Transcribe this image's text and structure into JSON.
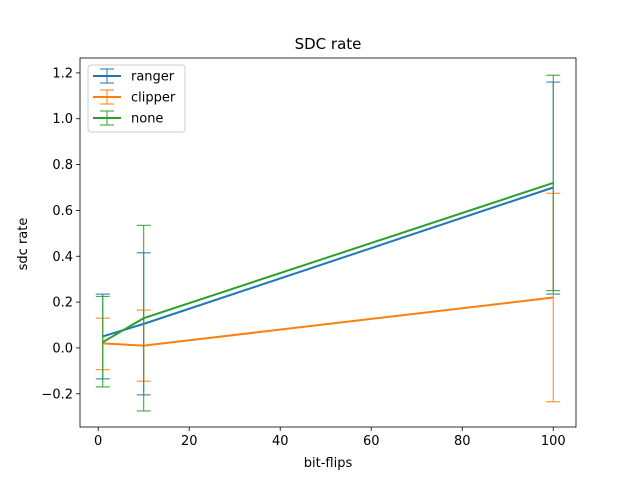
{
  "chart_data": {
    "type": "line",
    "title": "SDC rate",
    "xlabel": "bit-flips",
    "ylabel": "sdc rate",
    "xlim": [
      -4,
      105
    ],
    "ylim": [
      -0.345,
      1.265
    ],
    "x_ticks": [
      0,
      20,
      40,
      60,
      80,
      100
    ],
    "y_ticks": [
      -0.2,
      0.0,
      0.2,
      0.4,
      0.6,
      0.8,
      1.0,
      1.2
    ],
    "x_tick_labels": [
      "0",
      "20",
      "40",
      "60",
      "80",
      "100"
    ],
    "y_tick_labels": [
      "−0.2",
      "0.0",
      "0.2",
      "0.4",
      "0.6",
      "0.8",
      "1.0",
      "1.2"
    ],
    "legend_position": "top-left",
    "grid": false,
    "x": [
      1,
      10,
      100
    ],
    "series": [
      {
        "name": "ranger",
        "color": "#1f77b4",
        "values": [
          0.05,
          0.105,
          0.7
        ],
        "err_low": [
          -0.135,
          -0.205,
          0.235
        ],
        "err_high": [
          0.235,
          0.415,
          1.16
        ]
      },
      {
        "name": "clipper",
        "color": "#ff7f0e",
        "values": [
          0.02,
          0.01,
          0.22
        ],
        "err_low": [
          -0.095,
          -0.145,
          -0.235
        ],
        "err_high": [
          0.13,
          0.165,
          0.675
        ]
      },
      {
        "name": "none",
        "color": "#2ca02c",
        "values": [
          0.025,
          0.13,
          0.72
        ],
        "err_low": [
          -0.17,
          -0.275,
          0.25
        ],
        "err_high": [
          0.225,
          0.535,
          1.19
        ]
      }
    ]
  }
}
